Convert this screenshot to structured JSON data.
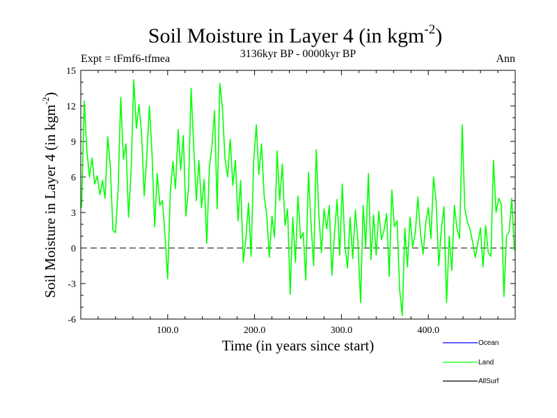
{
  "chart_data": {
    "type": "line",
    "title": "Soil Moisture in Layer 4 (in kgm",
    "title_exponent": "-2",
    "title_close": ")",
    "subtitle_left": "Expt = tFmf6-tfmea",
    "subtitle_center": "3136kyr BP - 0000kyr BP",
    "subtitle_right": "Ann",
    "xlabel": "Time (in years since start)",
    "ylabel": "Soil Moisture in Layer 4 (in kgm",
    "ylabel_exponent": "-2",
    "ylabel_close": ")",
    "xlim": [
      0,
      500
    ],
    "ylim": [
      -6,
      15
    ],
    "x_ticks": [
      {
        "value": 100,
        "label": "100.0"
      },
      {
        "value": 200,
        "label": "200.0"
      },
      {
        "value": 300,
        "label": "300.0"
      },
      {
        "value": 400,
        "label": "400.0"
      }
    ],
    "y_ticks": [
      {
        "value": -6,
        "label": "-6"
      },
      {
        "value": -3,
        "label": "-3"
      },
      {
        "value": 0,
        "label": "0"
      },
      {
        "value": 3,
        "label": "3"
      },
      {
        "value": 6,
        "label": "6"
      },
      {
        "value": 9,
        "label": "9"
      },
      {
        "value": 12,
        "label": "12"
      },
      {
        "value": 15,
        "label": "15"
      }
    ],
    "zero_line": true,
    "legend": [
      {
        "name": "Ocean",
        "color": "#0000ff"
      },
      {
        "name": "Land",
        "color": "#00ff00"
      },
      {
        "name": "AllSurf",
        "color": "#000000"
      }
    ],
    "series": [
      {
        "name": "Land",
        "color": "#00ff00",
        "x": [
          1,
          4,
          7,
          10,
          13,
          16,
          19,
          22,
          25,
          28,
          31,
          34,
          37,
          40,
          43,
          46,
          49,
          52,
          55,
          58,
          61,
          64,
          67,
          70,
          73,
          76,
          79,
          82,
          85,
          88,
          91,
          94,
          97,
          100,
          103,
          106,
          109,
          112,
          115,
          118,
          121,
          124,
          127,
          130,
          133,
          136,
          139,
          142,
          145,
          148,
          151,
          154,
          157,
          160,
          163,
          166,
          169,
          172,
          175,
          178,
          181,
          184,
          187,
          190,
          193,
          196,
          199,
          202,
          205,
          208,
          211,
          214,
          217,
          220,
          223,
          226,
          229,
          232,
          235,
          238,
          241,
          244,
          247,
          250,
          253,
          256,
          259,
          262,
          265,
          268,
          271,
          274,
          277,
          280,
          283,
          286,
          289,
          292,
          295,
          298,
          301,
          304,
          307,
          310,
          313,
          316,
          319,
          322,
          325,
          328,
          331,
          334,
          337,
          340,
          343,
          346,
          349,
          352,
          355,
          358,
          361,
          364,
          367,
          370,
          373,
          376,
          379,
          382,
          385,
          388,
          391,
          394,
          397,
          400,
          403,
          406,
          409,
          412,
          415,
          418,
          421,
          424,
          427,
          430,
          433,
          436,
          439,
          442,
          445,
          448,
          451,
          454,
          457,
          460,
          463,
          466,
          469,
          472,
          475,
          478,
          481,
          484,
          487,
          490,
          493,
          496,
          499
        ],
        "values": [
          3.4,
          12.4,
          8.3,
          6.0,
          7.6,
          5.4,
          6.1,
          4.5,
          5.7,
          4.2,
          9.4,
          6.9,
          1.5,
          1.3,
          5.0,
          12.7,
          7.5,
          8.8,
          2.6,
          6.6,
          14.2,
          10.1,
          12.1,
          9.6,
          4.4,
          7.7,
          12.0,
          8.0,
          1.8,
          6.3,
          3.6,
          4.0,
          1.0,
          -2.6,
          4.6,
          7.3,
          5.0,
          10.0,
          6.6,
          9.5,
          2.7,
          5.1,
          13.5,
          8.6,
          4.0,
          7.4,
          3.4,
          5.8,
          0.4,
          6.8,
          8.6,
          11.6,
          3.3,
          13.9,
          11.9,
          7.5,
          6.0,
          9.2,
          5.3,
          7.4,
          2.3,
          5.7,
          -1.2,
          0.8,
          3.8,
          -0.7,
          7.4,
          10.4,
          6.2,
          8.8,
          4.5,
          2.8,
          -0.8,
          2.7,
          0.9,
          8.2,
          4.0,
          7.1,
          1.9,
          3.3,
          -3.9,
          2.6,
          -1.2,
          4.4,
          0.8,
          1.3,
          -2.7,
          6.4,
          2.1,
          -1.5,
          8.3,
          2.8,
          -0.4,
          3.3,
          1.6,
          3.6,
          -2.3,
          1.2,
          4.1,
          -0.6,
          5.4,
          0.2,
          -1.7,
          2.6,
          -0.9,
          3.2,
          0.5,
          -4.6,
          3.6,
          0.1,
          6.3,
          -1.0,
          2.8,
          -0.6,
          3.1,
          0.7,
          1.5,
          2.9,
          -2.4,
          4.9,
          1.8,
          2.3,
          -3.5,
          -5.7,
          1.7,
          -1.6,
          2.6,
          0.1,
          1.3,
          4.3,
          1.2,
          -0.5,
          2.1,
          3.4,
          0.8,
          6.0,
          3.9,
          -1.5,
          1.6,
          3.5,
          -4.6,
          1.0,
          -1.9,
          3.6,
          1.6,
          0.8,
          10.4,
          3.3,
          2.2,
          1.6,
          0.5,
          -0.8,
          0.4,
          1.7,
          -1.6,
          1.9,
          -0.4,
          -0.7,
          7.4,
          3.0,
          4.2,
          3.7,
          -4.1,
          1.0,
          1.4,
          4.2,
          -0.2
        ]
      }
    ]
  }
}
